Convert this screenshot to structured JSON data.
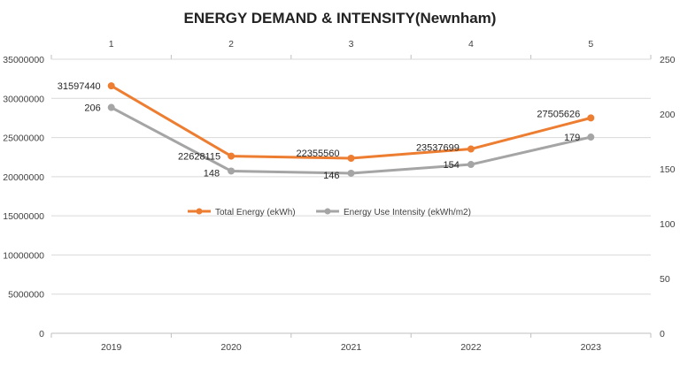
{
  "chart_data": {
    "type": "line",
    "title": "ENERGY DEMAND & INTENSITY(Newnham)",
    "categories": [
      "2019",
      "2020",
      "2021",
      "2022",
      "2023"
    ],
    "secondary_x_ticks": [
      "1",
      "2",
      "3",
      "4",
      "5"
    ],
    "y_left": {
      "ylim": [
        0,
        35000000
      ],
      "ticks": [
        "0",
        "5000000",
        "10000000",
        "15000000",
        "20000000",
        "25000000",
        "30000000",
        "35000000"
      ]
    },
    "y_right": {
      "ylim": [
        0,
        250
      ],
      "ticks": [
        "0",
        "50",
        "100",
        "150",
        "200",
        "250"
      ]
    },
    "grid": true,
    "legend_position": "center",
    "series": [
      {
        "name": "Total Energy (ekWh)",
        "axis": "left",
        "color": "#ED7D31",
        "values": [
          31597440,
          22628115,
          22355560,
          23537699,
          27505626
        ],
        "labels": [
          "31597440",
          "22628115",
          "22355560",
          "23537699",
          "27505626"
        ]
      },
      {
        "name": "Energy Use Intensity (ekWh/m2)",
        "axis": "right",
        "color": "#A5A5A5",
        "values": [
          206,
          148,
          146,
          154,
          179
        ],
        "labels": [
          "206",
          "148",
          "146",
          "154",
          "179"
        ]
      }
    ]
  }
}
